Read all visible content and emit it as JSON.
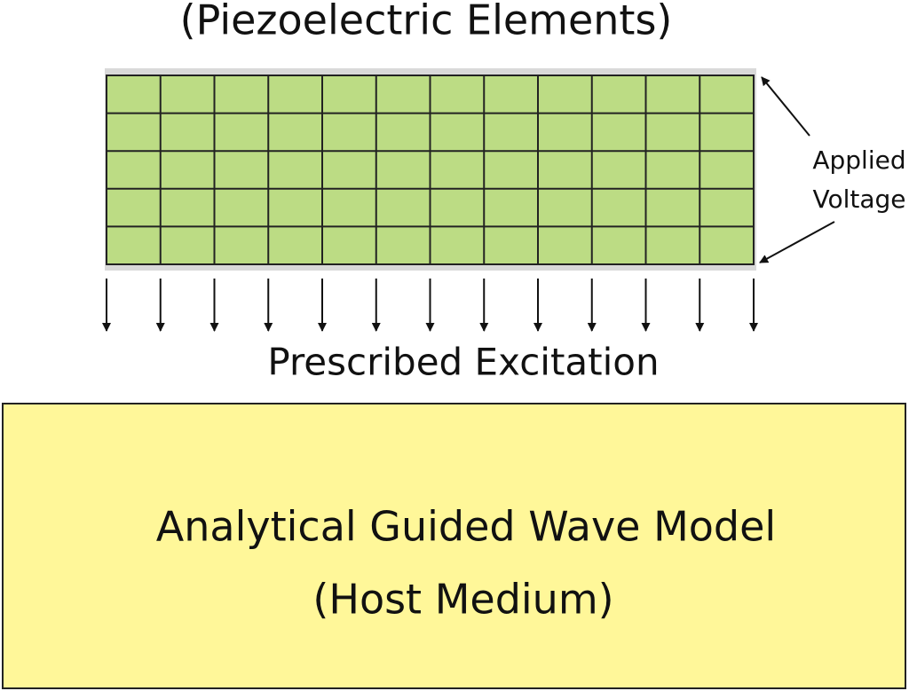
{
  "title": "(Piezoelectric Elements)",
  "annotation": {
    "lines": [
      "Applied",
      "Voltage"
    ]
  },
  "excitation_label": "Prescribed Excitation",
  "host_box": {
    "lines": [
      "Analytical Guided Wave Model",
      "(Host Medium)"
    ]
  }
}
